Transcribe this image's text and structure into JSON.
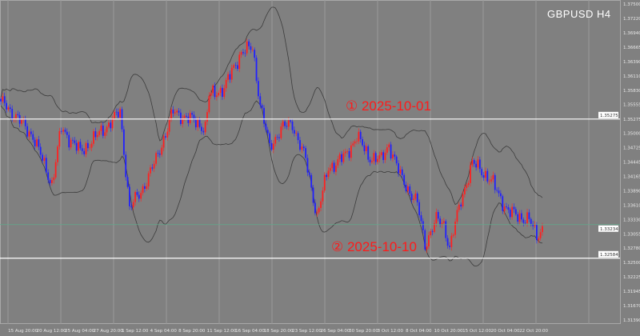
{
  "chart_data": {
    "type": "candlestick",
    "title": "GBPUSD  H4",
    "symbol": "GBPUSD",
    "timeframe": "H4",
    "colors": {
      "background": "#808080",
      "bull": "#ff2020",
      "bear": "#2020ff",
      "bands": "#3c3c3c",
      "grid": "#9a9a9a",
      "hline": "#ffffff",
      "annotation": "#ff1a1a"
    },
    "ylim": [
      1.3139,
      1.375
    ],
    "y_ticks": [
      "1.37500",
      "1.37220",
      "1.36940",
      "1.36665",
      "1.36390",
      "1.36110",
      "1.35830",
      "1.35555",
      "1.35275",
      "1.35000",
      "1.34725",
      "1.34445",
      "1.34165",
      "1.33890",
      "1.33610",
      "1.33330",
      "1.33055",
      "1.32780",
      "1.32500",
      "1.32225",
      "1.31945",
      "1.31670",
      "1.31390"
    ],
    "x_ticks": [
      "15 Aug 20:00",
      "20 Aug 12:00",
      "25 Aug 04:00",
      "27 Aug 20:00",
      "1 Sep 12:00",
      "4 Sep 04:00",
      "8 Sep 20:00",
      "11 Sep 12:00",
      "16 Sep 04:00",
      "18 Sep 20:00",
      "23 Sep 12:00",
      "26 Sep 04:00",
      "30 Sep 20:00",
      "3 Oct 12:00",
      "8 Oct 04:00",
      "10 Oct 20:00",
      "15 Oct 12:00",
      "20 Oct 04:00",
      "22 Oct 20:00"
    ],
    "bars_between_x_ticks": 15,
    "indicator": "Bollinger Bands (20, 2)",
    "approx_close_path": [
      [
        2,
        1.35566
      ],
      [
        17,
        1.34947
      ],
      [
        27,
        1.34019
      ],
      [
        32,
        1.35102
      ],
      [
        42,
        1.34638
      ],
      [
        55,
        1.35102
      ],
      [
        63,
        1.35412
      ],
      [
        68,
        1.33555
      ],
      [
        74,
        1.33865
      ],
      [
        82,
        1.34483
      ],
      [
        91,
        1.35412
      ],
      [
        101,
        1.35257
      ],
      [
        108,
        1.35102
      ],
      [
        110,
        1.35721
      ],
      [
        118,
        1.35876
      ],
      [
        127,
        1.36572
      ],
      [
        133,
        1.36649
      ],
      [
        137,
        1.35566
      ],
      [
        142,
        1.34715
      ],
      [
        148,
        1.35102
      ],
      [
        154,
        1.3518
      ],
      [
        161,
        1.34483
      ],
      [
        167,
        1.334
      ],
      [
        173,
        1.34329
      ],
      [
        182,
        1.34561
      ],
      [
        188,
        1.34947
      ],
      [
        194,
        1.34561
      ],
      [
        201,
        1.34483
      ],
      [
        205,
        1.34792
      ],
      [
        211,
        1.34174
      ],
      [
        220,
        1.33632
      ],
      [
        224,
        1.32855
      ],
      [
        230,
        1.33323
      ],
      [
        234,
        1.33246
      ],
      [
        237,
        1.32782
      ],
      [
        243,
        1.3371
      ],
      [
        249,
        1.34406
      ],
      [
        253,
        1.34329
      ],
      [
        260,
        1.34019
      ],
      [
        268,
        1.33478
      ],
      [
        279,
        1.33323
      ],
      [
        283,
        1.33014
      ],
      [
        286,
        1.33168
      ]
    ],
    "horizontal_lines": [
      {
        "price": 1.35275,
        "label": "1.35275",
        "annotation": "① 2025-10-01"
      },
      {
        "price": 1.32584,
        "label": "1.32584",
        "annotation": "② 2025-10-10"
      }
    ],
    "current_price": {
      "price": 1.33234,
      "label": "1.33234"
    }
  }
}
